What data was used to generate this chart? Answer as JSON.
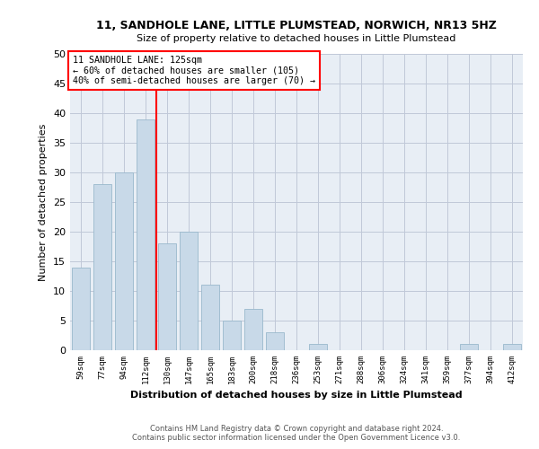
{
  "title": "11, SANDHOLE LANE, LITTLE PLUMSTEAD, NORWICH, NR13 5HZ",
  "subtitle": "Size of property relative to detached houses in Little Plumstead",
  "xlabel": "Distribution of detached houses by size in Little Plumstead",
  "ylabel": "Number of detached properties",
  "bar_color": "#c8d9e8",
  "bar_edge_color": "#9ab8cc",
  "grid_color": "#c0c8d8",
  "background_color": "#e8eef5",
  "categories": [
    "59sqm",
    "77sqm",
    "94sqm",
    "112sqm",
    "130sqm",
    "147sqm",
    "165sqm",
    "183sqm",
    "200sqm",
    "218sqm",
    "236sqm",
    "253sqm",
    "271sqm",
    "288sqm",
    "306sqm",
    "324sqm",
    "341sqm",
    "359sqm",
    "377sqm",
    "394sqm",
    "412sqm"
  ],
  "values": [
    14,
    28,
    30,
    39,
    18,
    20,
    11,
    5,
    7,
    3,
    0,
    1,
    0,
    0,
    0,
    0,
    0,
    0,
    1,
    0,
    1
  ],
  "property_line_label": "11 SANDHOLE LANE: 125sqm",
  "annotation_line1": "← 60% of detached houses are smaller (105)",
  "annotation_line2": "40% of semi-detached houses are larger (70) →",
  "annotation_box_color": "white",
  "annotation_box_edge_color": "red",
  "vline_color": "red",
  "vline_x": 3.5,
  "ylim": [
    0,
    50
  ],
  "yticks": [
    0,
    5,
    10,
    15,
    20,
    25,
    30,
    35,
    40,
    45,
    50
  ],
  "footer1": "Contains HM Land Registry data © Crown copyright and database right 2024.",
  "footer2": "Contains public sector information licensed under the Open Government Licence v3.0."
}
